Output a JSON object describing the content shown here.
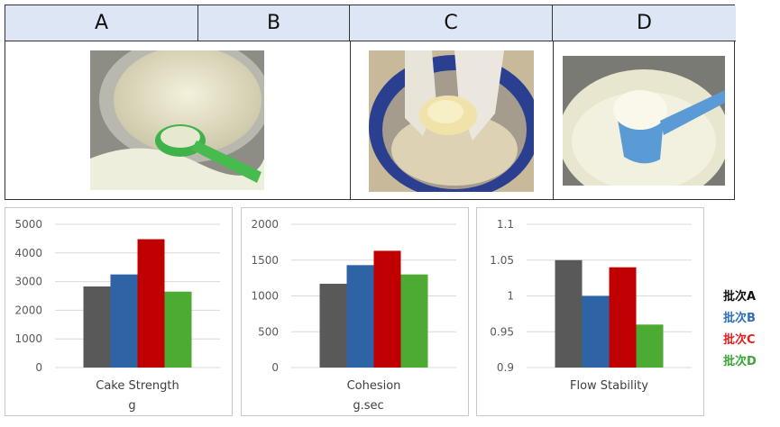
{
  "table": {
    "headers": [
      "A",
      "B",
      "C",
      "D"
    ],
    "header_bg": "#dce6f4"
  },
  "photos": [
    {
      "name": "powder-can-green-scoop-photo",
      "scoop_color": "#3fb24a"
    },
    {
      "name": "gloved-hand-powder-photo",
      "can_color": "#2a3f8f"
    },
    {
      "name": "powder-blue-scoop-photo",
      "scoop_color": "#5b9bd5"
    }
  ],
  "legend": [
    {
      "label": "批次A",
      "color": "#111111"
    },
    {
      "label": "批次B",
      "color": "#2e6fba"
    },
    {
      "label": "批次C",
      "color": "#e02020"
    },
    {
      "label": "批次D",
      "color": "#3aa537"
    }
  ],
  "chart_data": [
    {
      "type": "bar",
      "title": "",
      "xlabel": "Cake Strength",
      "unit": "g",
      "categories": [
        "批次A",
        "批次B",
        "批次C",
        "批次D"
      ],
      "values": [
        2830,
        3250,
        4480,
        2650
      ],
      "ylim": [
        0,
        5000
      ],
      "yticks": [
        0,
        1000,
        2000,
        3000,
        4000,
        5000
      ],
      "ytick_labels": [
        "0",
        "1000",
        "2000",
        "3000",
        "4000",
        "5000"
      ],
      "colors": [
        "#595959",
        "#2e63a6",
        "#c00000",
        "#4daa32"
      ],
      "grid": true
    },
    {
      "type": "bar",
      "title": "",
      "xlabel": "Cohesion",
      "unit": "g.sec",
      "categories": [
        "批次A",
        "批次B",
        "批次C",
        "批次D"
      ],
      "values": [
        1170,
        1430,
        1630,
        1300
      ],
      "ylim": [
        0,
        2000
      ],
      "yticks": [
        0,
        500,
        1000,
        1500,
        2000
      ],
      "ytick_labels": [
        "0",
        "500",
        "1000",
        "1500",
        "2000"
      ],
      "colors": [
        "#595959",
        "#2e63a6",
        "#c00000",
        "#4daa32"
      ],
      "grid": true
    },
    {
      "type": "bar",
      "title": "",
      "xlabel": "Flow Stability",
      "unit": "",
      "categories": [
        "批次A",
        "批次B",
        "批次C",
        "批次D"
      ],
      "values": [
        1.05,
        1.0,
        1.04,
        0.96
      ],
      "ylim": [
        0.9,
        1.1
      ],
      "yticks": [
        0.9,
        0.95,
        1.0,
        1.05,
        1.1
      ],
      "ytick_labels": [
        "0.9",
        "0.95",
        "1",
        "1.05",
        "1.1"
      ],
      "colors": [
        "#595959",
        "#2e63a6",
        "#c00000",
        "#4daa32"
      ],
      "grid": true
    }
  ]
}
